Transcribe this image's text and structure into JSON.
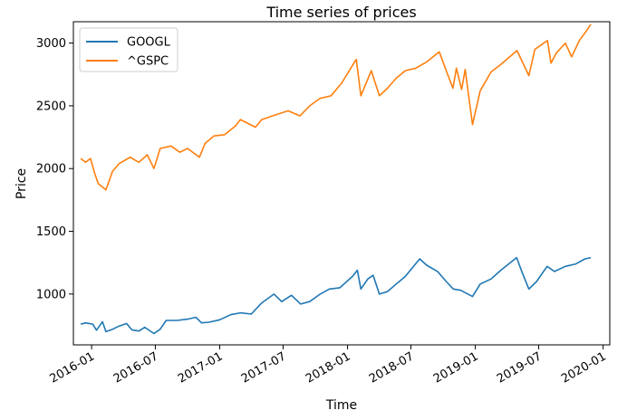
{
  "chart_data": {
    "type": "line",
    "title": "Time series of prices",
    "xlabel": "Time",
    "ylabel": "Price",
    "xlim": [
      "2015-11-10",
      "2020-01-20"
    ],
    "ylim": [
      595,
      3170
    ],
    "grid": false,
    "legend_position": "top-left",
    "x_ticks": [
      "2016-01",
      "2016-07",
      "2017-01",
      "2017-07",
      "2018-01",
      "2018-07",
      "2019-01",
      "2019-07",
      "2020-01"
    ],
    "y_ticks": [
      1000,
      1500,
      2000,
      2500,
      3000
    ],
    "series": [
      {
        "name": "GOOGL",
        "color": "#1f77b4",
        "points": [
          [
            "2015-12-01",
            760
          ],
          [
            "2015-12-15",
            770
          ],
          [
            "2016-01-04",
            760
          ],
          [
            "2016-01-15",
            712
          ],
          [
            "2016-02-01",
            780
          ],
          [
            "2016-02-11",
            700
          ],
          [
            "2016-03-01",
            720
          ],
          [
            "2016-03-20",
            745
          ],
          [
            "2016-04-10",
            765
          ],
          [
            "2016-04-25",
            715
          ],
          [
            "2016-05-15",
            705
          ],
          [
            "2016-06-01",
            735
          ],
          [
            "2016-06-27",
            685
          ],
          [
            "2016-07-15",
            720
          ],
          [
            "2016-08-01",
            790
          ],
          [
            "2016-09-01",
            790
          ],
          [
            "2016-10-01",
            800
          ],
          [
            "2016-10-25",
            815
          ],
          [
            "2016-11-10",
            770
          ],
          [
            "2016-12-01",
            775
          ],
          [
            "2017-01-01",
            795
          ],
          [
            "2017-02-01",
            835
          ],
          [
            "2017-03-01",
            850
          ],
          [
            "2017-04-01",
            840
          ],
          [
            "2017-05-01",
            930
          ],
          [
            "2017-06-05",
            1000
          ],
          [
            "2017-06-27",
            940
          ],
          [
            "2017-07-25",
            990
          ],
          [
            "2017-08-20",
            920
          ],
          [
            "2017-09-15",
            940
          ],
          [
            "2017-10-15",
            1000
          ],
          [
            "2017-11-10",
            1040
          ],
          [
            "2017-12-10",
            1050
          ],
          [
            "2018-01-15",
            1140
          ],
          [
            "2018-01-29",
            1190
          ],
          [
            "2018-02-08",
            1040
          ],
          [
            "2018-02-28",
            1120
          ],
          [
            "2018-03-15",
            1150
          ],
          [
            "2018-04-02",
            1000
          ],
          [
            "2018-04-25",
            1020
          ],
          [
            "2018-05-20",
            1080
          ],
          [
            "2018-06-15",
            1140
          ],
          [
            "2018-07-26",
            1280
          ],
          [
            "2018-08-15",
            1230
          ],
          [
            "2018-09-15",
            1180
          ],
          [
            "2018-10-10",
            1100
          ],
          [
            "2018-10-30",
            1040
          ],
          [
            "2018-11-20",
            1030
          ],
          [
            "2018-12-24",
            980
          ],
          [
            "2019-01-15",
            1080
          ],
          [
            "2019-02-15",
            1120
          ],
          [
            "2019-03-15",
            1190
          ],
          [
            "2019-04-29",
            1290
          ],
          [
            "2019-05-15",
            1170
          ],
          [
            "2019-06-03",
            1040
          ],
          [
            "2019-06-25",
            1100
          ],
          [
            "2019-07-25",
            1220
          ],
          [
            "2019-08-15",
            1180
          ],
          [
            "2019-09-15",
            1220
          ],
          [
            "2019-10-15",
            1240
          ],
          [
            "2019-11-10",
            1280
          ],
          [
            "2019-11-27",
            1290
          ]
        ]
      },
      {
        "name": "^GSPC",
        "color": "#ff7f0e",
        "points": [
          [
            "2015-12-01",
            2080
          ],
          [
            "2015-12-15",
            2050
          ],
          [
            "2015-12-29",
            2080
          ],
          [
            "2016-01-10",
            1960
          ],
          [
            "2016-01-20",
            1880
          ],
          [
            "2016-02-11",
            1830
          ],
          [
            "2016-03-01",
            1980
          ],
          [
            "2016-03-20",
            2040
          ],
          [
            "2016-04-20",
            2090
          ],
          [
            "2016-05-15",
            2050
          ],
          [
            "2016-06-08",
            2110
          ],
          [
            "2016-06-27",
            2000
          ],
          [
            "2016-07-15",
            2160
          ],
          [
            "2016-08-15",
            2180
          ],
          [
            "2016-09-09",
            2130
          ],
          [
            "2016-10-01",
            2160
          ],
          [
            "2016-11-04",
            2090
          ],
          [
            "2016-11-20",
            2200
          ],
          [
            "2016-12-15",
            2260
          ],
          [
            "2017-01-15",
            2270
          ],
          [
            "2017-02-15",
            2340
          ],
          [
            "2017-03-01",
            2390
          ],
          [
            "2017-04-13",
            2330
          ],
          [
            "2017-05-01",
            2390
          ],
          [
            "2017-06-01",
            2420
          ],
          [
            "2017-07-15",
            2460
          ],
          [
            "2017-08-18",
            2420
          ],
          [
            "2017-09-15",
            2500
          ],
          [
            "2017-10-15",
            2560
          ],
          [
            "2017-11-15",
            2580
          ],
          [
            "2017-12-15",
            2680
          ],
          [
            "2018-01-26",
            2870
          ],
          [
            "2018-02-08",
            2580
          ],
          [
            "2018-03-10",
            2780
          ],
          [
            "2018-04-02",
            2580
          ],
          [
            "2018-04-25",
            2640
          ],
          [
            "2018-05-20",
            2720
          ],
          [
            "2018-06-15",
            2780
          ],
          [
            "2018-07-15",
            2800
          ],
          [
            "2018-08-15",
            2850
          ],
          [
            "2018-09-20",
            2930
          ],
          [
            "2018-10-10",
            2780
          ],
          [
            "2018-10-29",
            2640
          ],
          [
            "2018-11-08",
            2800
          ],
          [
            "2018-11-23",
            2630
          ],
          [
            "2018-12-03",
            2790
          ],
          [
            "2018-12-24",
            2350
          ],
          [
            "2019-01-15",
            2620
          ],
          [
            "2019-02-15",
            2770
          ],
          [
            "2019-03-15",
            2830
          ],
          [
            "2019-04-30",
            2940
          ],
          [
            "2019-06-03",
            2740
          ],
          [
            "2019-06-20",
            2950
          ],
          [
            "2019-07-26",
            3020
          ],
          [
            "2019-08-05",
            2840
          ],
          [
            "2019-08-20",
            2920
          ],
          [
            "2019-09-15",
            3000
          ],
          [
            "2019-10-03",
            2890
          ],
          [
            "2019-10-25",
            3020
          ],
          [
            "2019-11-15",
            3100
          ],
          [
            "2019-11-27",
            3150
          ]
        ]
      }
    ]
  }
}
